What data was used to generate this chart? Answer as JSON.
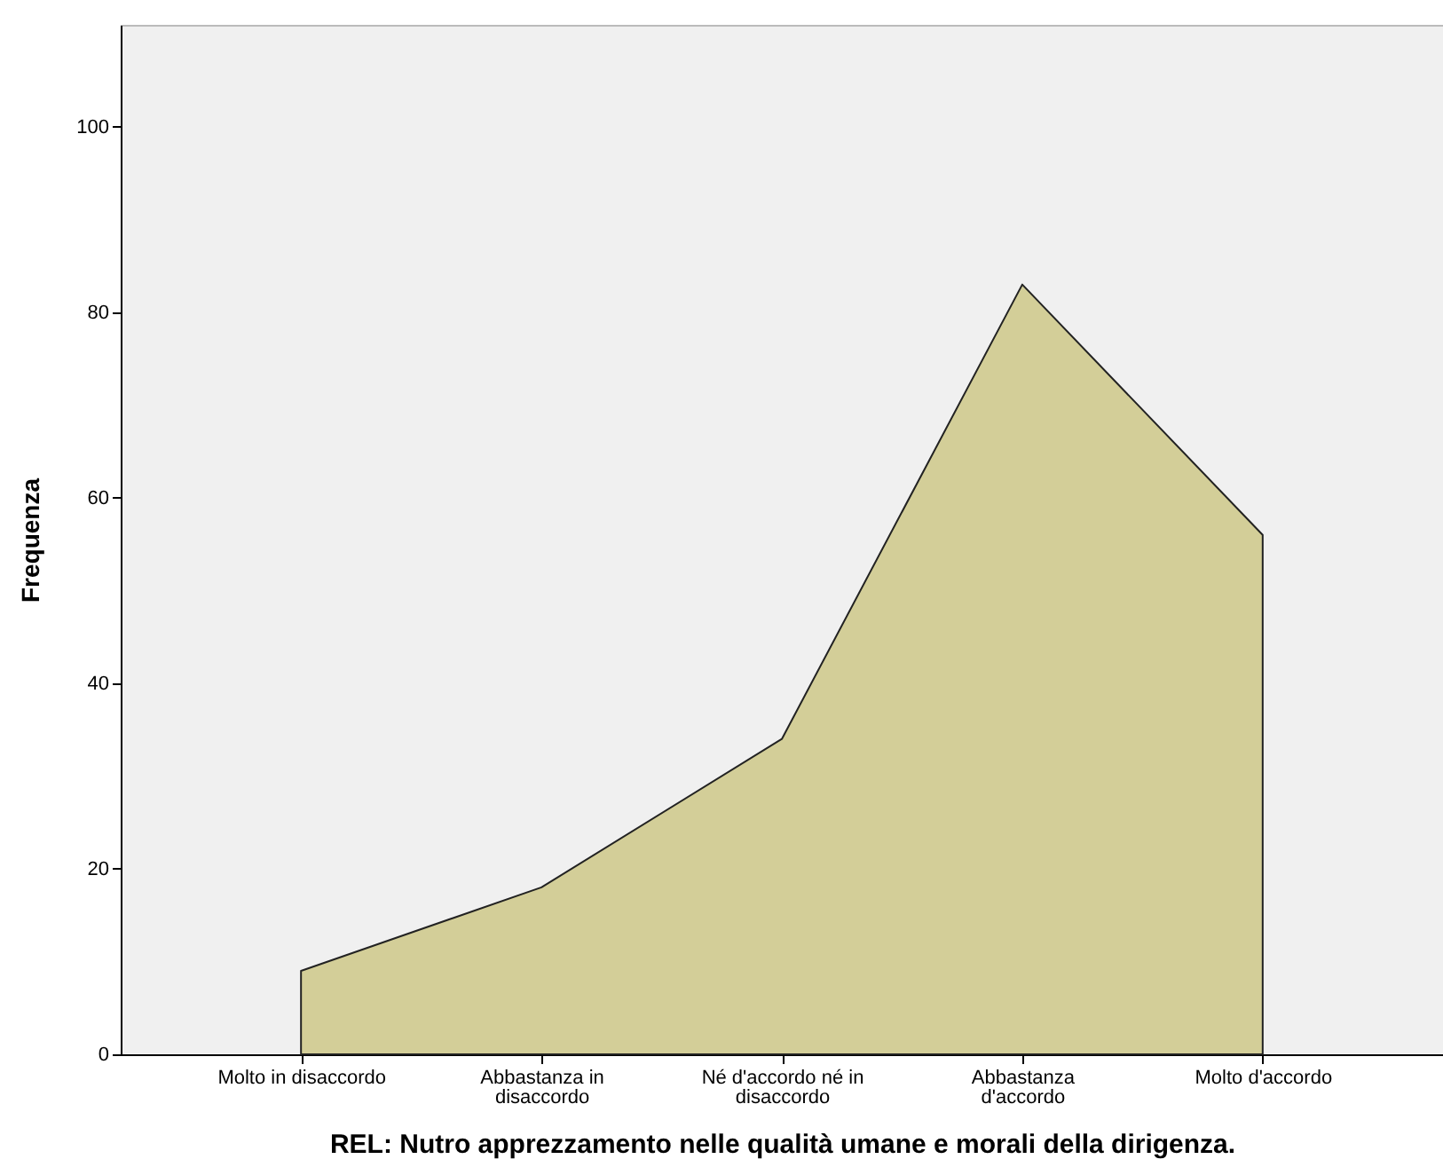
{
  "chart_data": {
    "type": "area",
    "xlabel": "REL: Nutro apprezzamento nelle qualità umane e morali della dirigenza.",
    "ylabel": "Frequenza",
    "categories": [
      "Molto in disaccordo",
      "Abbastanza in disaccordo",
      "Né d'accordo né in disaccordo",
      "Abbastanza d'accordo",
      "Molto d'accordo"
    ],
    "series": [
      {
        "color": "#d3ce98",
        "values": [
          9,
          18,
          34,
          83,
          56
        ]
      }
    ],
    "ylim": [
      0,
      111
    ],
    "yticks": [
      0,
      20,
      40,
      60,
      80,
      100
    ],
    "grid": false
  }
}
